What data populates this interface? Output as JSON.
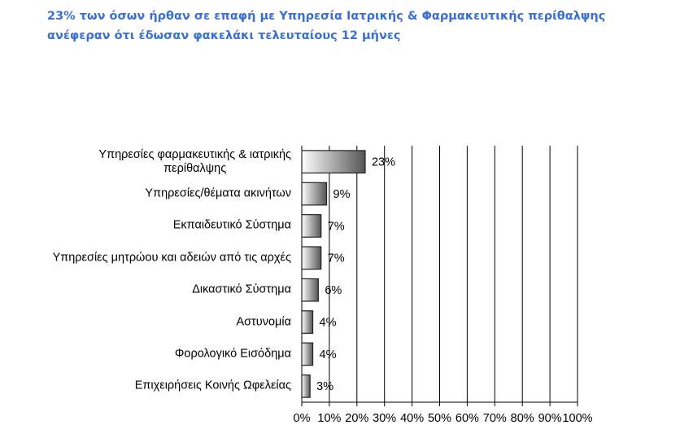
{
  "chart_data": {
    "type": "bar",
    "orientation": "horizontal",
    "title": [
      "23% των όσων ήρθαν σε επαφή με Υπηρεσία Ιατρικής & Φαρμακευτικής περίθαλψης",
      "ανέφεραν ότι έδωσαν φακελάκι τελευταίους 12 μήνες"
    ],
    "categories": [
      "Υπηρεσίες φαρμακευτικής & ιατρικής\nπερίθαλψης",
      "Υπηρεσίες/θέματα ακινήτων",
      "Εκπαιδευτικό Σύστημα",
      "Υπηρεσίες μητρώου και αδειών από τις αρχές",
      "Δικαστικό Σύστημα",
      "Αστυνομία",
      "Φορολογικό Εισόδημα",
      "Επιχειρήσεις Κοινής Ωφελείας"
    ],
    "values": [
      23,
      9,
      7,
      7,
      6,
      4,
      4,
      3
    ],
    "value_labels": [
      "23%",
      "9%",
      "7%",
      "7%",
      "6%",
      "4%",
      "4%",
      "3%"
    ],
    "color": "#555555",
    "xlim": [
      0,
      100
    ],
    "xticks": [
      {
        "value": 0,
        "label": "0%"
      },
      {
        "value": 10,
        "label": "10%"
      },
      {
        "value": 20,
        "label": "20%"
      },
      {
        "value": 30,
        "label": "30%"
      },
      {
        "value": 40,
        "label": "40%"
      },
      {
        "value": 50,
        "label": "50%"
      },
      {
        "value": 60,
        "label": "60%"
      },
      {
        "value": 70,
        "label": "70%"
      },
      {
        "value": 80,
        "label": "80%"
      },
      {
        "value": 90,
        "label": "90%"
      },
      {
        "value": 100,
        "label": "100%"
      }
    ],
    "grid": true
  }
}
